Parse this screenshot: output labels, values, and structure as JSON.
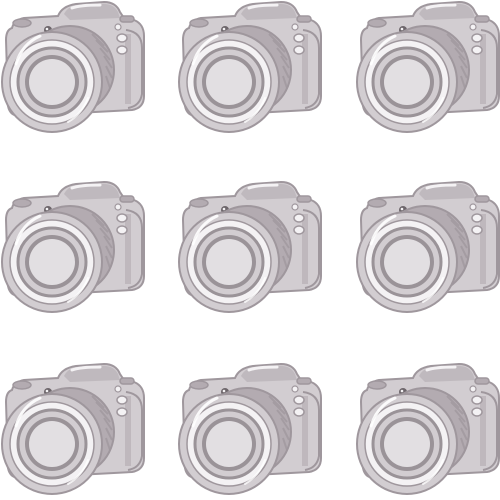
{
  "image": {
    "subject": "camera-icon",
    "layout": {
      "rows": 3,
      "columns": 3
    },
    "colors": {
      "background": "#ffffff",
      "body": "#d2cdd1",
      "shade": "#b3abb1",
      "outline": "#9f979d",
      "lens_inner": "#e2dfe2",
      "lens_ring": "#9a9398",
      "highlight": "#f4f2f4",
      "dark": "#6d666b"
    }
  }
}
